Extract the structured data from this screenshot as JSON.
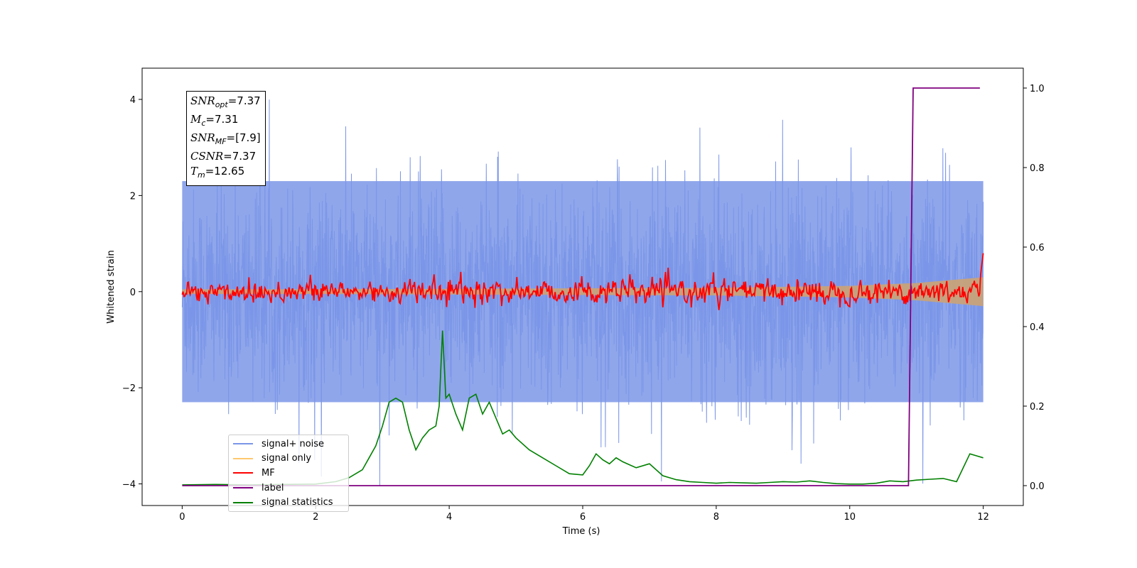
{
  "chart_data": {
    "type": "line",
    "xlabel": "Time (s)",
    "ylabel": "Whitened strain",
    "xlim": [
      -0.6,
      12.6
    ],
    "ylim": [
      -4.45,
      4.65
    ],
    "y2lim": [
      -0.05,
      1.05
    ],
    "xticks": [
      "0",
      "2",
      "4",
      "6",
      "8",
      "10",
      "12"
    ],
    "yticks": [
      "−4",
      "−2",
      "0",
      "2",
      "4"
    ],
    "y2ticks": [
      "0.0",
      "0.2",
      "0.4",
      "0.6",
      "0.8",
      "1.0"
    ],
    "grid": false,
    "legend_position": "lower-left",
    "annotation": [
      {
        "key": "SNR",
        "sub": "opt",
        "value": "=7.37"
      },
      {
        "key": "M",
        "sub": "c",
        "value": "=7.31"
      },
      {
        "key": "SNR",
        "sub": "MF",
        "value": "=[7.9]"
      },
      {
        "key": "CSNR",
        "sub": "",
        "value": "=7.37"
      },
      {
        "key": "T",
        "sub": "m",
        "value": "=12.65"
      }
    ],
    "series": [
      {
        "name": "signal+ noise",
        "color": "#7b96e8",
        "axis": "left",
        "description": "noise band",
        "band": [
          -2.3,
          2.3
        ],
        "x": [
          0,
          12
        ]
      },
      {
        "name": "signal only",
        "color": "#c8a27a",
        "axis": "left",
        "envelope_x": [
          0,
          2,
          4,
          6,
          8,
          10,
          11,
          12
        ],
        "envelope": [
          0.05,
          0.05,
          0.06,
          0.07,
          0.08,
          0.12,
          0.18,
          0.3
        ]
      },
      {
        "name": "MF",
        "color": "#ff0000",
        "axis": "left",
        "x": [
          0,
          12
        ],
        "approx_level": 0.0,
        "spread": 0.35,
        "end_value": 0.8
      },
      {
        "name": "label",
        "color": "#800080",
        "axis": "right",
        "x": [
          0,
          10.88,
          10.95,
          11.95
        ],
        "values": [
          0,
          0,
          1,
          1
        ]
      },
      {
        "name": "signal statistics",
        "color": "#008000",
        "axis": "right",
        "x": [
          0,
          0.5,
          1,
          1.5,
          2,
          2.3,
          2.5,
          2.7,
          2.8,
          2.9,
          3.0,
          3.1,
          3.2,
          3.3,
          3.4,
          3.5,
          3.6,
          3.7,
          3.8,
          3.85,
          3.9,
          3.95,
          4.0,
          4.1,
          4.2,
          4.3,
          4.4,
          4.5,
          4.6,
          4.7,
          4.8,
          4.9,
          5.0,
          5.2,
          5.4,
          5.6,
          5.8,
          6.0,
          6.1,
          6.2,
          6.3,
          6.4,
          6.5,
          6.6,
          6.8,
          7.0,
          7.2,
          7.4,
          7.6,
          7.8,
          8.0,
          8.2,
          8.4,
          8.6,
          8.8,
          9.0,
          9.2,
          9.4,
          9.6,
          9.8,
          10.0,
          10.2,
          10.4,
          10.6,
          10.8,
          11.0,
          11.2,
          11.4,
          11.6,
          11.8,
          11.9,
          12.0
        ],
        "values": [
          0.002,
          0.003,
          0.002,
          0.003,
          0.004,
          0.01,
          0.02,
          0.04,
          0.07,
          0.1,
          0.15,
          0.21,
          0.22,
          0.21,
          0.14,
          0.09,
          0.12,
          0.14,
          0.15,
          0.2,
          0.39,
          0.22,
          0.23,
          0.18,
          0.14,
          0.22,
          0.23,
          0.18,
          0.21,
          0.17,
          0.13,
          0.14,
          0.12,
          0.09,
          0.07,
          0.05,
          0.03,
          0.027,
          0.05,
          0.08,
          0.065,
          0.055,
          0.07,
          0.06,
          0.045,
          0.055,
          0.025,
          0.015,
          0.01,
          0.008,
          0.006,
          0.008,
          0.007,
          0.006,
          0.008,
          0.01,
          0.009,
          0.012,
          0.008,
          0.005,
          0.004,
          0.004,
          0.006,
          0.012,
          0.01,
          0.014,
          0.016,
          0.018,
          0.01,
          0.08,
          0.075,
          0.07
        ]
      }
    ]
  }
}
